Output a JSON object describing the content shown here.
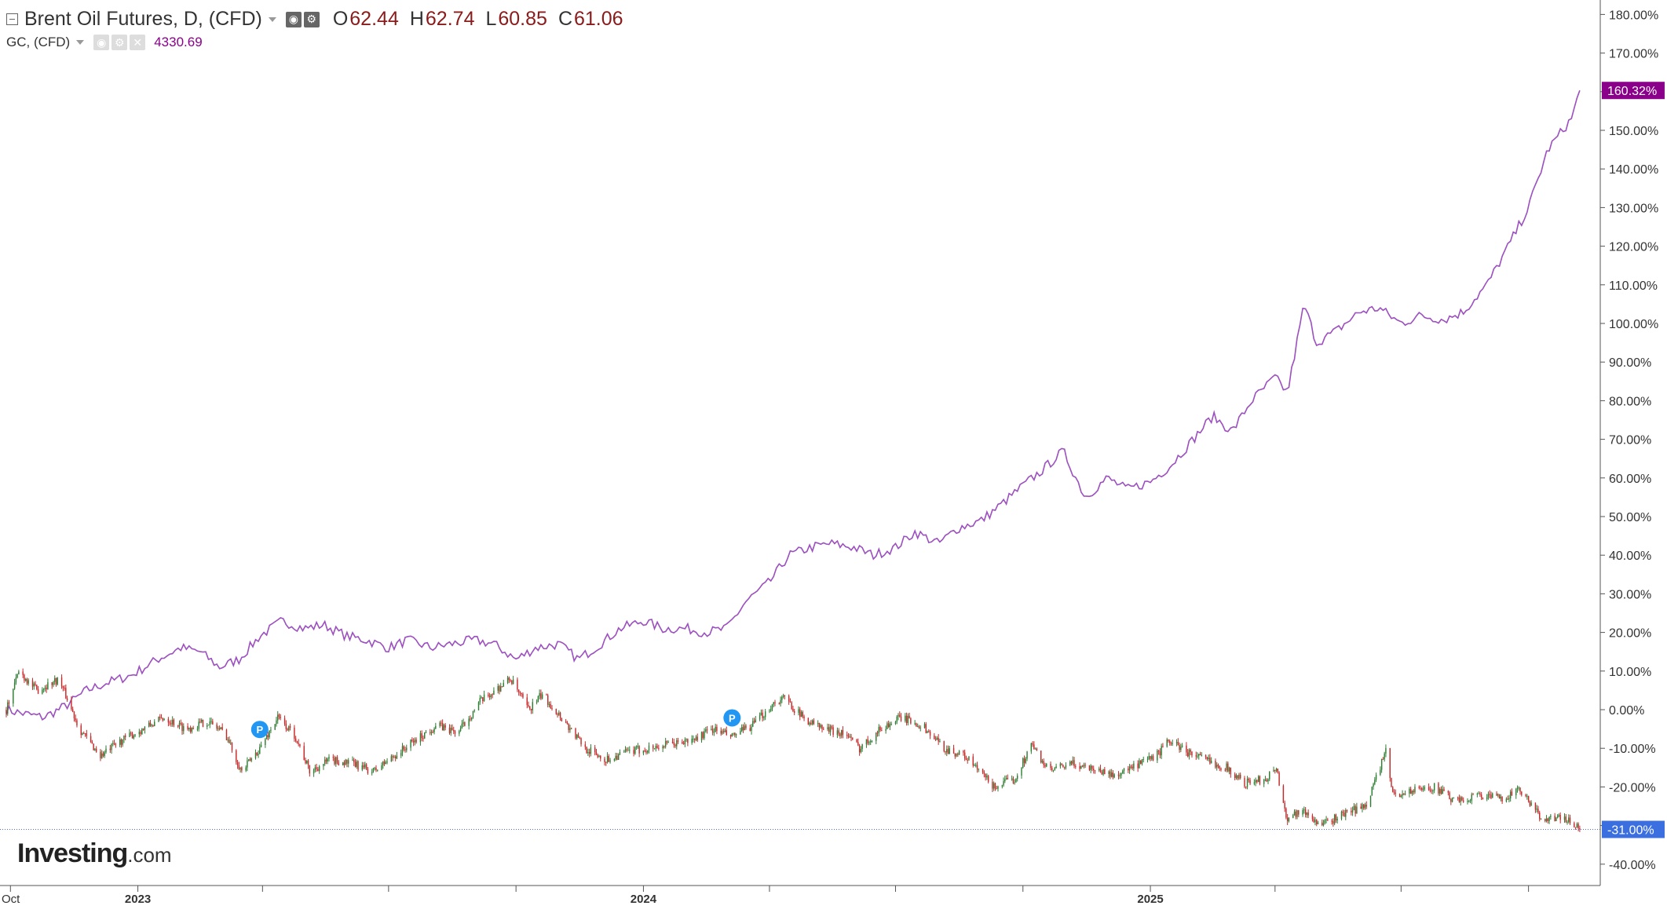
{
  "legend": {
    "main_title": "Brent Oil Futures, D, (CFD)",
    "open_label": "O",
    "open_value": "62.44",
    "high_label": "H",
    "high_value": "62.74",
    "low_label": "L",
    "low_value": "60.85",
    "close_label": "C",
    "close_value": "61.06",
    "second_title": "GC, (CFD)",
    "second_value": "4330.69"
  },
  "logo": {
    "brand": "Investing",
    "suffix": ".com"
  },
  "markers": [
    {
      "label": "P",
      "date": "2023-03-30",
      "value": 0
    },
    {
      "label": "P",
      "date": "2024-03-05",
      "value": -0.0
    }
  ],
  "chart_data": {
    "type": "line",
    "x_type": "date",
    "x_range": [
      "2022-09-28",
      "2025-11-15"
    ],
    "y_unit": "%",
    "ylim": [
      -45,
      180
    ],
    "y_ticks": [
      -40,
      -30,
      -20,
      -10,
      0,
      10,
      20,
      30,
      40,
      50,
      60,
      70,
      80,
      90,
      100,
      110,
      120,
      130,
      140,
      150,
      160,
      170,
      180
    ],
    "y_tick_labels": [
      "-40.00%",
      "-30.00%",
      "-20.00%",
      "-10.00%",
      "0.00%",
      "10.00%",
      "20.00%",
      "30.00%",
      "40.00%",
      "50.00%",
      "60.00%",
      "70.00%",
      "80.00%",
      "90.00%",
      "100.00%",
      "110.00%",
      "120.00%",
      "130.00%",
      "140.00%",
      "150.00%",
      "160.00%",
      "170.00%",
      "180.00%"
    ],
    "x_tick_labels": [
      {
        "date": "2022-10-01",
        "label": "Oct"
      },
      {
        "date": "2023-01-01",
        "label": "2023"
      },
      {
        "date": "2024-01-01",
        "label": "2024"
      },
      {
        "date": "2025-01-01",
        "label": "2025"
      }
    ],
    "series": [
      {
        "name": "GC, (CFD)",
        "color": "#9c4fbf",
        "last_label": "160.32%",
        "points": [
          [
            "2022-09-28",
            0
          ],
          [
            "2022-10-10",
            -1
          ],
          [
            "2022-10-25",
            -2
          ],
          [
            "2022-11-10",
            1
          ],
          [
            "2022-11-25",
            5
          ],
          [
            "2022-12-10",
            7
          ],
          [
            "2022-12-28",
            9
          ],
          [
            "2023-01-15",
            13
          ],
          [
            "2023-02-01",
            16
          ],
          [
            "2023-02-15",
            15
          ],
          [
            "2023-03-01",
            11
          ],
          [
            "2023-03-15",
            13
          ],
          [
            "2023-03-30",
            19
          ],
          [
            "2023-04-15",
            23
          ],
          [
            "2023-05-01",
            21
          ],
          [
            "2023-05-15",
            22
          ],
          [
            "2023-06-01",
            19
          ],
          [
            "2023-06-15",
            18
          ],
          [
            "2023-07-01",
            16
          ],
          [
            "2023-07-15",
            18
          ],
          [
            "2023-08-01",
            16
          ],
          [
            "2023-08-15",
            17
          ],
          [
            "2023-09-01",
            18
          ],
          [
            "2023-09-15",
            17
          ],
          [
            "2023-10-01",
            13
          ],
          [
            "2023-10-15",
            16
          ],
          [
            "2023-11-01",
            17
          ],
          [
            "2023-11-15",
            13
          ],
          [
            "2023-12-01",
            17
          ],
          [
            "2023-12-15",
            21
          ],
          [
            "2024-01-01",
            23
          ],
          [
            "2024-01-15",
            21
          ],
          [
            "2024-02-01",
            21
          ],
          [
            "2024-02-15",
            20
          ],
          [
            "2024-03-01",
            21
          ],
          [
            "2024-03-15",
            28
          ],
          [
            "2024-04-01",
            33
          ],
          [
            "2024-04-15",
            40
          ],
          [
            "2024-05-01",
            42
          ],
          [
            "2024-05-15",
            43
          ],
          [
            "2024-06-01",
            42
          ],
          [
            "2024-06-15",
            40
          ],
          [
            "2024-07-01",
            42
          ],
          [
            "2024-07-15",
            46
          ],
          [
            "2024-08-01",
            43
          ],
          [
            "2024-08-15",
            47
          ],
          [
            "2024-09-01",
            49
          ],
          [
            "2024-09-15",
            53
          ],
          [
            "2024-10-01",
            58
          ],
          [
            "2024-10-15",
            62
          ],
          [
            "2024-10-30",
            67
          ],
          [
            "2024-11-15",
            55
          ],
          [
            "2024-12-01",
            60
          ],
          [
            "2024-12-15",
            57
          ],
          [
            "2025-01-01",
            59
          ],
          [
            "2025-01-15",
            63
          ],
          [
            "2025-02-01",
            70
          ],
          [
            "2025-02-15",
            76
          ],
          [
            "2025-03-01",
            72
          ],
          [
            "2025-03-15",
            80
          ],
          [
            "2025-04-01",
            86
          ],
          [
            "2025-04-10",
            82
          ],
          [
            "2025-04-22",
            105
          ],
          [
            "2025-05-01",
            95
          ],
          [
            "2025-05-15",
            98
          ],
          [
            "2025-06-01",
            103
          ],
          [
            "2025-06-15",
            104
          ],
          [
            "2025-07-01",
            100
          ],
          [
            "2025-07-15",
            102
          ],
          [
            "2025-08-01",
            101
          ],
          [
            "2025-08-15",
            103
          ],
          [
            "2025-09-01",
            110
          ],
          [
            "2025-09-15",
            119
          ],
          [
            "2025-10-01",
            130
          ],
          [
            "2025-10-15",
            145
          ],
          [
            "2025-11-01",
            153
          ],
          [
            "2025-11-07",
            160.32
          ]
        ]
      },
      {
        "name": "Brent Oil Futures, D, (CFD)",
        "style": "candlestick",
        "up_color": "#2e7d32",
        "down_color": "#c62828",
        "last_label": "-31.00%",
        "points": [
          [
            "2022-09-28",
            0
          ],
          [
            "2022-10-07",
            10
          ],
          [
            "2022-10-20",
            5
          ],
          [
            "2022-11-05",
            8
          ],
          [
            "2022-11-20",
            -5
          ],
          [
            "2022-12-05",
            -12
          ],
          [
            "2022-12-20",
            -8
          ],
          [
            "2023-01-05",
            -5
          ],
          [
            "2023-01-20",
            -2
          ],
          [
            "2023-02-05",
            -5
          ],
          [
            "2023-02-20",
            -3
          ],
          [
            "2023-03-05",
            -6
          ],
          [
            "2023-03-17",
            -16
          ],
          [
            "2023-03-30",
            -10
          ],
          [
            "2023-04-12",
            -2
          ],
          [
            "2023-04-25",
            -7
          ],
          [
            "2023-05-05",
            -16
          ],
          [
            "2023-05-20",
            -13
          ],
          [
            "2023-06-05",
            -14
          ],
          [
            "2023-06-20",
            -16
          ],
          [
            "2023-07-05",
            -12
          ],
          [
            "2023-07-20",
            -8
          ],
          [
            "2023-08-05",
            -4
          ],
          [
            "2023-08-20",
            -6
          ],
          [
            "2023-09-05",
            2
          ],
          [
            "2023-09-27",
            8
          ],
          [
            "2023-10-10",
            0
          ],
          [
            "2023-10-20",
            4
          ],
          [
            "2023-11-05",
            -3
          ],
          [
            "2023-11-20",
            -10
          ],
          [
            "2023-12-05",
            -13
          ],
          [
            "2023-12-20",
            -11
          ],
          [
            "2024-01-05",
            -10
          ],
          [
            "2024-01-20",
            -9
          ],
          [
            "2024-02-05",
            -8
          ],
          [
            "2024-02-20",
            -5
          ],
          [
            "2024-03-05",
            -7
          ],
          [
            "2024-03-20",
            -4
          ],
          [
            "2024-04-05",
            2
          ],
          [
            "2024-04-12",
            3
          ],
          [
            "2024-04-25",
            -2
          ],
          [
            "2024-05-10",
            -5
          ],
          [
            "2024-05-25",
            -6
          ],
          [
            "2024-06-05",
            -10
          ],
          [
            "2024-06-20",
            -5
          ],
          [
            "2024-07-05",
            -2
          ],
          [
            "2024-07-20",
            -4
          ],
          [
            "2024-08-05",
            -10
          ],
          [
            "2024-08-20",
            -12
          ],
          [
            "2024-09-10",
            -20
          ],
          [
            "2024-09-25",
            -18
          ],
          [
            "2024-10-07",
            -9
          ],
          [
            "2024-10-20",
            -16
          ],
          [
            "2024-11-05",
            -14
          ],
          [
            "2024-11-20",
            -15
          ],
          [
            "2024-12-05",
            -17
          ],
          [
            "2024-12-20",
            -15
          ],
          [
            "2025-01-05",
            -12
          ],
          [
            "2025-01-15",
            -8
          ],
          [
            "2025-01-28",
            -11
          ],
          [
            "2025-02-10",
            -13
          ],
          [
            "2025-02-25",
            -15
          ],
          [
            "2025-03-10",
            -19
          ],
          [
            "2025-03-25",
            -18
          ],
          [
            "2025-04-02",
            -15
          ],
          [
            "2025-04-09",
            -28
          ],
          [
            "2025-04-20",
            -26
          ],
          [
            "2025-05-05",
            -30
          ],
          [
            "2025-05-20",
            -27
          ],
          [
            "2025-06-05",
            -25
          ],
          [
            "2025-06-20",
            -11
          ],
          [
            "2025-06-25",
            -22
          ],
          [
            "2025-07-10",
            -21
          ],
          [
            "2025-07-25",
            -20
          ],
          [
            "2025-08-10",
            -24
          ],
          [
            "2025-08-25",
            -22
          ],
          [
            "2025-09-10",
            -23
          ],
          [
            "2025-09-25",
            -21
          ],
          [
            "2025-10-10",
            -28
          ],
          [
            "2025-10-20",
            -28
          ],
          [
            "2025-11-01",
            -29
          ],
          [
            "2025-11-07",
            -31
          ]
        ]
      }
    ],
    "grid": false,
    "legend": "top-left"
  }
}
